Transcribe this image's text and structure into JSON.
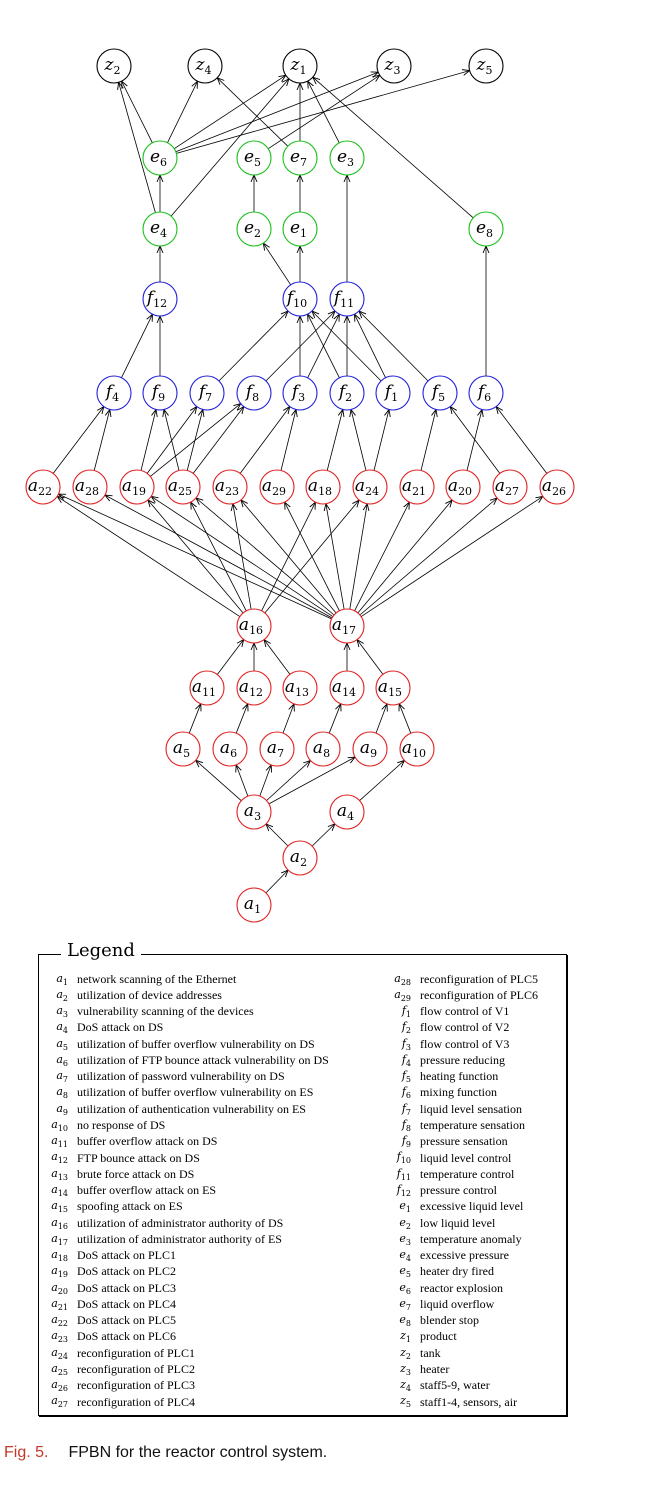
{
  "diagram": {
    "colors": {
      "red": "#e02020",
      "green": "#18c018",
      "blue": "#2020d8",
      "black": "#000000"
    },
    "nodes": [
      {
        "id": "z2",
        "base": "z",
        "sub": "2",
        "color": "black"
      },
      {
        "id": "z4",
        "base": "z",
        "sub": "4",
        "color": "black"
      },
      {
        "id": "z1",
        "base": "z",
        "sub": "1",
        "color": "black"
      },
      {
        "id": "z3",
        "base": "z",
        "sub": "3",
        "color": "black"
      },
      {
        "id": "z5",
        "base": "z",
        "sub": "5",
        "color": "black"
      },
      {
        "id": "e6",
        "base": "e",
        "sub": "6",
        "color": "green"
      },
      {
        "id": "e5",
        "base": "e",
        "sub": "5",
        "color": "green"
      },
      {
        "id": "e7",
        "base": "e",
        "sub": "7",
        "color": "green"
      },
      {
        "id": "e3",
        "base": "e",
        "sub": "3",
        "color": "green"
      },
      {
        "id": "e4",
        "base": "e",
        "sub": "4",
        "color": "green"
      },
      {
        "id": "e2",
        "base": "e",
        "sub": "2",
        "color": "green"
      },
      {
        "id": "e1",
        "base": "e",
        "sub": "1",
        "color": "green"
      },
      {
        "id": "e8",
        "base": "e",
        "sub": "8",
        "color": "green"
      },
      {
        "id": "f12",
        "base": "f",
        "sub": "12",
        "color": "blue"
      },
      {
        "id": "f10",
        "base": "f",
        "sub": "10",
        "color": "blue"
      },
      {
        "id": "f11",
        "base": "f",
        "sub": "11",
        "color": "blue"
      },
      {
        "id": "f4",
        "base": "f",
        "sub": "4",
        "color": "blue"
      },
      {
        "id": "f9",
        "base": "f",
        "sub": "9",
        "color": "blue"
      },
      {
        "id": "f7",
        "base": "f",
        "sub": "7",
        "color": "blue"
      },
      {
        "id": "f8",
        "base": "f",
        "sub": "8",
        "color": "blue"
      },
      {
        "id": "f3",
        "base": "f",
        "sub": "3",
        "color": "blue"
      },
      {
        "id": "f2",
        "base": "f",
        "sub": "2",
        "color": "blue"
      },
      {
        "id": "f1",
        "base": "f",
        "sub": "1",
        "color": "blue"
      },
      {
        "id": "f5",
        "base": "f",
        "sub": "5",
        "color": "blue"
      },
      {
        "id": "f6",
        "base": "f",
        "sub": "6",
        "color": "blue"
      },
      {
        "id": "a22",
        "base": "a",
        "sub": "22",
        "color": "red"
      },
      {
        "id": "a28",
        "base": "a",
        "sub": "28",
        "color": "red"
      },
      {
        "id": "a19",
        "base": "a",
        "sub": "19",
        "color": "red"
      },
      {
        "id": "a25",
        "base": "a",
        "sub": "25",
        "color": "red"
      },
      {
        "id": "a23",
        "base": "a",
        "sub": "23",
        "color": "red"
      },
      {
        "id": "a29",
        "base": "a",
        "sub": "29",
        "color": "red"
      },
      {
        "id": "a18",
        "base": "a",
        "sub": "18",
        "color": "red"
      },
      {
        "id": "a24",
        "base": "a",
        "sub": "24",
        "color": "red"
      },
      {
        "id": "a21",
        "base": "a",
        "sub": "21",
        "color": "red"
      },
      {
        "id": "a20",
        "base": "a",
        "sub": "20",
        "color": "red"
      },
      {
        "id": "a27",
        "base": "a",
        "sub": "27",
        "color": "red"
      },
      {
        "id": "a26",
        "base": "a",
        "sub": "26",
        "color": "red"
      },
      {
        "id": "a16",
        "base": "a",
        "sub": "16",
        "color": "red"
      },
      {
        "id": "a17",
        "base": "a",
        "sub": "17",
        "color": "red"
      },
      {
        "id": "a11",
        "base": "a",
        "sub": "11",
        "color": "red"
      },
      {
        "id": "a12",
        "base": "a",
        "sub": "12",
        "color": "red"
      },
      {
        "id": "a13",
        "base": "a",
        "sub": "13",
        "color": "red"
      },
      {
        "id": "a14",
        "base": "a",
        "sub": "14",
        "color": "red"
      },
      {
        "id": "a15",
        "base": "a",
        "sub": "15",
        "color": "red"
      },
      {
        "id": "a5",
        "base": "a",
        "sub": "5",
        "color": "red"
      },
      {
        "id": "a6",
        "base": "a",
        "sub": "6",
        "color": "red"
      },
      {
        "id": "a7",
        "base": "a",
        "sub": "7",
        "color": "red"
      },
      {
        "id": "a8",
        "base": "a",
        "sub": "8",
        "color": "red"
      },
      {
        "id": "a9",
        "base": "a",
        "sub": "9",
        "color": "red"
      },
      {
        "id": "a10",
        "base": "a",
        "sub": "10",
        "color": "red"
      },
      {
        "id": "a3",
        "base": "a",
        "sub": "3",
        "color": "red"
      },
      {
        "id": "a4",
        "base": "a",
        "sub": "4",
        "color": "red"
      },
      {
        "id": "a2",
        "base": "a",
        "sub": "2",
        "color": "red"
      },
      {
        "id": "a1",
        "base": "a",
        "sub": "1",
        "color": "red"
      }
    ],
    "edges": [
      [
        "a1",
        "a2"
      ],
      [
        "a2",
        "a3"
      ],
      [
        "a2",
        "a4"
      ],
      [
        "a3",
        "a5"
      ],
      [
        "a3",
        "a6"
      ],
      [
        "a3",
        "a7"
      ],
      [
        "a3",
        "a8"
      ],
      [
        "a3",
        "a9"
      ],
      [
        "a4",
        "a10"
      ],
      [
        "a5",
        "a11"
      ],
      [
        "a6",
        "a12"
      ],
      [
        "a7",
        "a13"
      ],
      [
        "a8",
        "a14"
      ],
      [
        "a9",
        "a15"
      ],
      [
        "a10",
        "a15"
      ],
      [
        "a11",
        "a16"
      ],
      [
        "a12",
        "a16"
      ],
      [
        "a13",
        "a16"
      ],
      [
        "a14",
        "a17"
      ],
      [
        "a15",
        "a17"
      ],
      [
        "a16",
        "a22"
      ],
      [
        "a16",
        "a19"
      ],
      [
        "a16",
        "a25"
      ],
      [
        "a16",
        "a23"
      ],
      [
        "a16",
        "a18"
      ],
      [
        "a16",
        "a24"
      ],
      [
        "a17",
        "a22"
      ],
      [
        "a17",
        "a28"
      ],
      [
        "a17",
        "a19"
      ],
      [
        "a17",
        "a25"
      ],
      [
        "a17",
        "a23"
      ],
      [
        "a17",
        "a29"
      ],
      [
        "a17",
        "a18"
      ],
      [
        "a17",
        "a24"
      ],
      [
        "a17",
        "a21"
      ],
      [
        "a17",
        "a20"
      ],
      [
        "a17",
        "a27"
      ],
      [
        "a17",
        "a26"
      ],
      [
        "a22",
        "f4"
      ],
      [
        "a28",
        "f4"
      ],
      [
        "a19",
        "f9"
      ],
      [
        "a19",
        "f7"
      ],
      [
        "a19",
        "f8"
      ],
      [
        "a25",
        "f9"
      ],
      [
        "a25",
        "f7"
      ],
      [
        "a25",
        "f8"
      ],
      [
        "a23",
        "f3"
      ],
      [
        "a29",
        "f3"
      ],
      [
        "a18",
        "f2"
      ],
      [
        "a24",
        "f2"
      ],
      [
        "a24",
        "f1"
      ],
      [
        "a21",
        "f5"
      ],
      [
        "a20",
        "f6"
      ],
      [
        "a27",
        "f5"
      ],
      [
        "a26",
        "f6"
      ],
      [
        "f4",
        "f12"
      ],
      [
        "f9",
        "f12"
      ],
      [
        "f7",
        "f10"
      ],
      [
        "f8",
        "f11"
      ],
      [
        "f3",
        "f10"
      ],
      [
        "f3",
        "f11"
      ],
      [
        "f2",
        "f10"
      ],
      [
        "f2",
        "f11"
      ],
      [
        "f1",
        "f10"
      ],
      [
        "f1",
        "f11"
      ],
      [
        "f5",
        "f11"
      ],
      [
        "f12",
        "e4"
      ],
      [
        "f10",
        "e2"
      ],
      [
        "f10",
        "e1"
      ],
      [
        "f11",
        "e3"
      ],
      [
        "f6",
        "e8"
      ],
      [
        "e4",
        "e6"
      ],
      [
        "e4",
        "z2"
      ],
      [
        "e4",
        "z1"
      ],
      [
        "e2",
        "e5"
      ],
      [
        "e1",
        "e7"
      ],
      [
        "e3",
        "z1"
      ],
      [
        "e8",
        "z1"
      ],
      [
        "e6",
        "z2"
      ],
      [
        "e6",
        "z4"
      ],
      [
        "e6",
        "z1"
      ],
      [
        "e6",
        "z3"
      ],
      [
        "e6",
        "z5"
      ],
      [
        "e7",
        "z1"
      ],
      [
        "e7",
        "z4"
      ],
      [
        "e5",
        "z3"
      ]
    ]
  },
  "legend": {
    "title": "Legend",
    "left": [
      {
        "base": "a",
        "sub": "1",
        "desc": "network scanning of the Ethernet"
      },
      {
        "base": "a",
        "sub": "2",
        "desc": "utilization of device addresses"
      },
      {
        "base": "a",
        "sub": "3",
        "desc": "vulnerability scanning of the devices"
      },
      {
        "base": "a",
        "sub": "4",
        "desc": "DoS attack on DS"
      },
      {
        "base": "a",
        "sub": "5",
        "desc": "utilization of buffer overflow vulnerability on DS"
      },
      {
        "base": "a",
        "sub": "6",
        "desc": "utilization of FTP bounce attack vulnerability on DS"
      },
      {
        "base": "a",
        "sub": "7",
        "desc": "utilization of password vulnerability on DS"
      },
      {
        "base": "a",
        "sub": "8",
        "desc": "utilization of buffer overflow vulnerability on ES"
      },
      {
        "base": "a",
        "sub": "9",
        "desc": "utilization of authentication vulnerability on ES"
      },
      {
        "base": "a",
        "sub": "10",
        "desc": "no response of DS"
      },
      {
        "base": "a",
        "sub": "11",
        "desc": "buffer overflow attack on DS"
      },
      {
        "base": "a",
        "sub": "12",
        "desc": "FTP bounce attack on DS"
      },
      {
        "base": "a",
        "sub": "13",
        "desc": "brute force attack on DS"
      },
      {
        "base": "a",
        "sub": "14",
        "desc": "buffer overflow attack on ES"
      },
      {
        "base": "a",
        "sub": "15",
        "desc": "spoofing attack on ES"
      },
      {
        "base": "a",
        "sub": "16",
        "desc": "utilization of administrator authority of DS"
      },
      {
        "base": "a",
        "sub": "17",
        "desc": "utilization of administrator authority of ES"
      },
      {
        "base": "a",
        "sub": "18",
        "desc": "DoS attack on PLC1"
      },
      {
        "base": "a",
        "sub": "19",
        "desc": "DoS attack on PLC2"
      },
      {
        "base": "a",
        "sub": "20",
        "desc": "DoS attack on PLC3"
      },
      {
        "base": "a",
        "sub": "21",
        "desc": "DoS attack on PLC4"
      },
      {
        "base": "a",
        "sub": "22",
        "desc": "DoS attack on PLC5"
      },
      {
        "base": "a",
        "sub": "23",
        "desc": "DoS attack on PLC6"
      },
      {
        "base": "a",
        "sub": "24",
        "desc": "reconfiguration of PLC1"
      },
      {
        "base": "a",
        "sub": "25",
        "desc": "reconfiguration of PLC2"
      },
      {
        "base": "a",
        "sub": "26",
        "desc": "reconfiguration of PLC3"
      },
      {
        "base": "a",
        "sub": "27",
        "desc": "reconfiguration of PLC4"
      }
    ],
    "right": [
      {
        "base": "a",
        "sub": "28",
        "desc": "reconfiguration of PLC5"
      },
      {
        "base": "a",
        "sub": "29",
        "desc": "reconfiguration of PLC6"
      },
      {
        "base": "f",
        "sub": "1",
        "desc": "flow control of V1"
      },
      {
        "base": "f",
        "sub": "2",
        "desc": "flow control of V2"
      },
      {
        "base": "f",
        "sub": "3",
        "desc": "flow control of V3"
      },
      {
        "base": "f",
        "sub": "4",
        "desc": "pressure reducing"
      },
      {
        "base": "f",
        "sub": "5",
        "desc": "heating function"
      },
      {
        "base": "f",
        "sub": "6",
        "desc": "mixing function"
      },
      {
        "base": "f",
        "sub": "7",
        "desc": "liquid level sensation"
      },
      {
        "base": "f",
        "sub": "8",
        "desc": "temperature sensation"
      },
      {
        "base": "f",
        "sub": "9",
        "desc": "pressure sensation"
      },
      {
        "base": "f",
        "sub": "10",
        "desc": "liquid level control"
      },
      {
        "base": "f",
        "sub": "11",
        "desc": "temperature control"
      },
      {
        "base": "f",
        "sub": "12",
        "desc": "pressure control"
      },
      {
        "base": "e",
        "sub": "1",
        "desc": "excessive liquid level"
      },
      {
        "base": "e",
        "sub": "2",
        "desc": "low liquid level"
      },
      {
        "base": "e",
        "sub": "3",
        "desc": "temperature anomaly"
      },
      {
        "base": "e",
        "sub": "4",
        "desc": "excessive pressure"
      },
      {
        "base": "e",
        "sub": "5",
        "desc": "heater dry fired"
      },
      {
        "base": "e",
        "sub": "6",
        "desc": "reactor explosion"
      },
      {
        "base": "e",
        "sub": "7",
        "desc": "liquid overflow"
      },
      {
        "base": "e",
        "sub": "8",
        "desc": "blender stop"
      },
      {
        "base": "z",
        "sub": "1",
        "desc": "product"
      },
      {
        "base": "z",
        "sub": "2",
        "desc": "tank"
      },
      {
        "base": "z",
        "sub": "3",
        "desc": "heater"
      },
      {
        "base": "z",
        "sub": "4",
        "desc": "staff5-9, water"
      },
      {
        "base": "z",
        "sub": "5",
        "desc": "staff1-4, sensors, air"
      }
    ]
  },
  "caption": {
    "label": "Fig. 5.",
    "text": "FPBN for the reactor control system."
  }
}
